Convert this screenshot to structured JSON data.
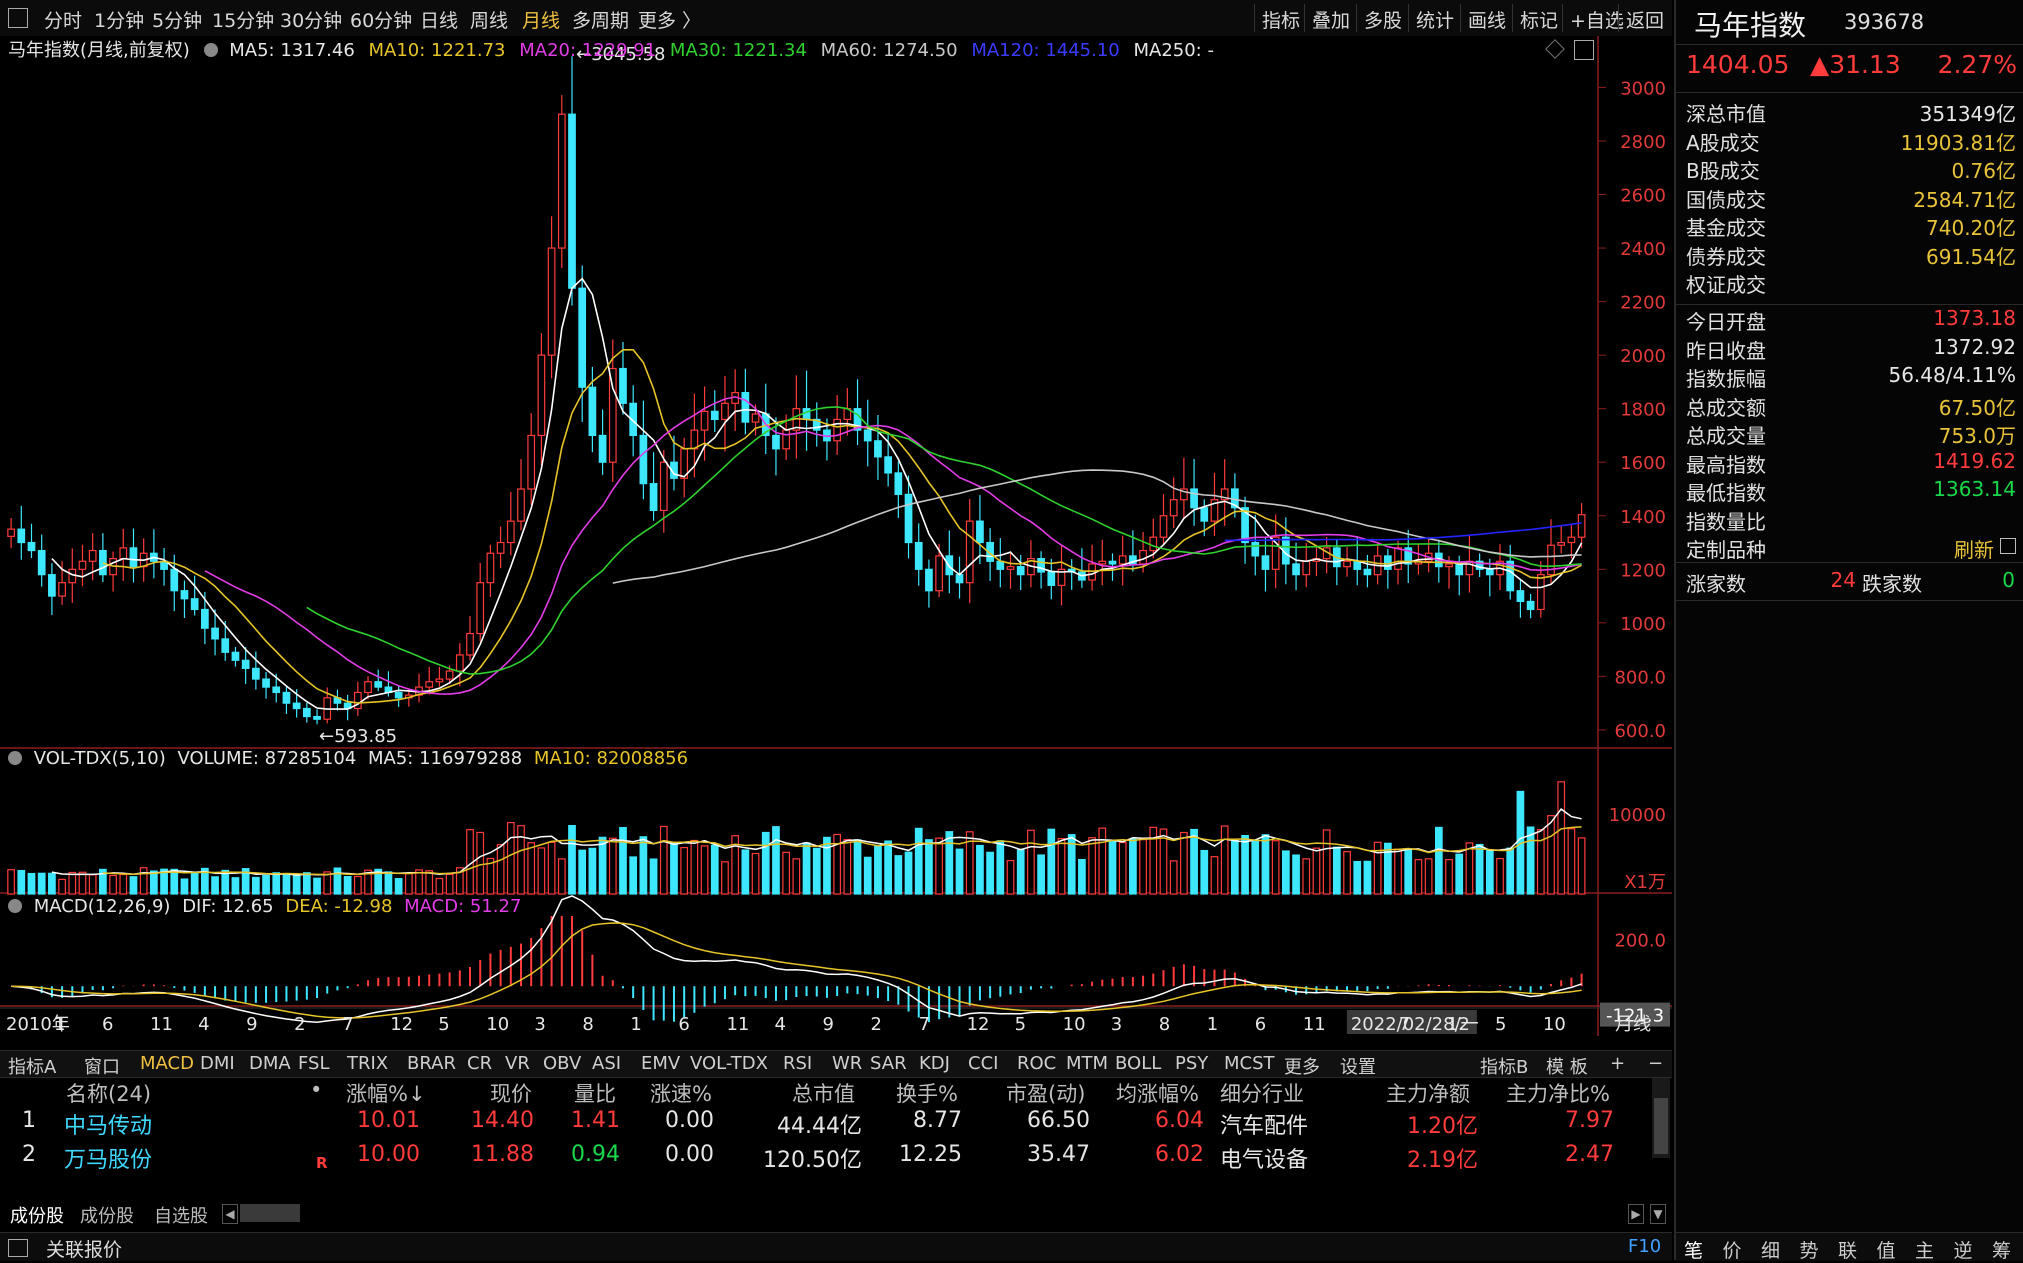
{
  "toolbar": {
    "periods": [
      "分时",
      "1分钟",
      "5分钟",
      "15分钟",
      "30分钟",
      "60分钟",
      "日线",
      "周线",
      "月线",
      "多周期",
      "更多 〉"
    ],
    "active_period": "月线",
    "right": [
      "指标",
      "叠加",
      "多股",
      "统计",
      "画线",
      "标记",
      "+自选",
      "返回"
    ]
  },
  "main_info": {
    "title": "马年指数(月线,前复权)",
    "ma5": "MA5: 1317.46",
    "ma10": "MA10: 1221.73",
    "ma20": "MA20: 1229.91",
    "ma30": "MA30: 1221.34",
    "ma60": "MA60: 1274.50",
    "ma120": "MA120: 1445.10",
    "ma250": "MA250: -"
  },
  "vol_info": {
    "title": "VOL-TDX(5,10)",
    "volume": "VOLUME: 87285104",
    "ma5": "MA5: 116979288",
    "ma10": "MA10: 82008856"
  },
  "macd_info": {
    "title": "MACD(12,26,9)",
    "dif": "DIF: 12.65",
    "dea": "DEA: -12.98",
    "macd": "MACD: 51.27"
  },
  "chart_data": {
    "type": "candlestick",
    "period": "monthly",
    "price_axis": [
      "3000",
      "2800",
      "2600",
      "2400",
      "2200",
      "2000",
      "1800",
      "1600",
      "1400",
      "1200",
      "1000",
      "800.0",
      "600.0"
    ],
    "price_ylim": [
      540,
      3080
    ],
    "high_label": "3045.58",
    "low_label": "593.85",
    "volume_axis": [
      "10000"
    ],
    "volume_unit": "X1万",
    "volume_ylim": [
      0,
      16000
    ],
    "macd_axis": [
      "200.0"
    ],
    "macd_current": "-121.3",
    "macd_ylim": [
      -170,
      300
    ],
    "x_labels": [
      "2010年",
      "1",
      "6",
      "11",
      "4",
      "9",
      "2",
      "7",
      "12",
      "5",
      "10",
      "3",
      "8",
      "1",
      "6",
      "11",
      "4",
      "9",
      "2",
      "7",
      "12",
      "5",
      "10",
      "3",
      "8",
      "1",
      "6",
      "11",
      "2022/02/28/一",
      "7",
      "12",
      "5",
      "10"
    ],
    "period_label": "月线",
    "closes": [
      1350,
      1300,
      1270,
      1180,
      1100,
      1150,
      1200,
      1230,
      1270,
      1180,
      1240,
      1280,
      1210,
      1260,
      1230,
      1200,
      1120,
      1090,
      1050,
      980,
      940,
      890,
      860,
      830,
      790,
      760,
      740,
      700,
      680,
      650,
      640,
      720,
      700,
      680,
      740,
      780,
      760,
      740,
      720,
      730,
      760,
      780,
      790,
      820,
      880,
      960,
      1150,
      1260,
      1300,
      1380,
      1500,
      1700,
      2000,
      2400,
      2900,
      2250,
      1880,
      1700,
      1600,
      1950,
      1820,
      1700,
      1520,
      1420,
      1600,
      1540,
      1650,
      1720,
      1790,
      1760,
      1820,
      1860,
      1750,
      1780,
      1700,
      1650,
      1720,
      1800,
      1760,
      1720,
      1680,
      1760,
      1800,
      1720,
      1680,
      1620,
      1560,
      1480,
      1300,
      1200,
      1120,
      1250,
      1180,
      1150,
      1380,
      1300,
      1230,
      1200,
      1210,
      1180,
      1240,
      1190,
      1140,
      1200,
      1190,
      1160,
      1220,
      1230,
      1220,
      1250,
      1220,
      1270,
      1320,
      1400,
      1460,
      1500,
      1430,
      1380,
      1460,
      1500,
      1430,
      1300,
      1250,
      1200,
      1320,
      1220,
      1180,
      1230,
      1240,
      1280,
      1210,
      1230,
      1200,
      1180,
      1250,
      1200,
      1280,
      1220,
      1230,
      1260,
      1210,
      1220,
      1180,
      1230,
      1200,
      1180,
      1230,
      1120,
      1080,
      1050,
      1180,
      1290,
      1300,
      1320,
      1404
    ],
    "ma_colors": {
      "ma5": "#ffffff",
      "ma10": "#e6c428",
      "ma20": "#e23de6",
      "ma30": "#2fd12f",
      "ma60": "#c8c8c8",
      "ma120": "#2424ff"
    }
  },
  "stock": {
    "name": "马年指数",
    "code": "393678",
    "price": "1404.05",
    "change": "▲31.13",
    "pct": "2.27%",
    "rows1": [
      {
        "k": "深总市值",
        "v": "351349亿",
        "c": "wht"
      },
      {
        "k": "A股成交",
        "v": "11903.81亿",
        "c": "yel"
      },
      {
        "k": "B股成交",
        "v": "0.76亿",
        "c": "yel"
      },
      {
        "k": "国债成交",
        "v": "2584.71亿",
        "c": "yel"
      },
      {
        "k": "基金成交",
        "v": "740.20亿",
        "c": "yel"
      },
      {
        "k": "债券成交",
        "v": "691.54亿",
        "c": "yel"
      },
      {
        "k": "权证成交",
        "v": "",
        "c": "yel"
      }
    ],
    "rows2": [
      {
        "k": "今日开盘",
        "v": "1373.18",
        "c": "red"
      },
      {
        "k": "昨日收盘",
        "v": "1372.92",
        "c": "wht"
      },
      {
        "k": "指数振幅",
        "v": "56.48/4.11%",
        "c": "wht"
      },
      {
        "k": "总成交额",
        "v": "67.50亿",
        "c": "yel"
      },
      {
        "k": "总成交量",
        "v": "753.0万",
        "c": "yel"
      },
      {
        "k": "最高指数",
        "v": "1419.62",
        "c": "red"
      },
      {
        "k": "最低指数",
        "v": "1363.14",
        "c": "grn"
      },
      {
        "k": "指数量比",
        "v": "",
        "c": "wht"
      },
      {
        "k": "定制品种",
        "v": "刷新",
        "c": "yel"
      }
    ],
    "up_label": "涨家数",
    "up": "24",
    "down_label": "跌家数",
    "down": "0"
  },
  "indicators": [
    "指标A",
    "窗口",
    "MACD",
    "DMI",
    "DMA",
    "FSL",
    "TRIX",
    "BRAR",
    "CR",
    "VR",
    "OBV",
    "ASI",
    "EMV",
    "VOL-TDX",
    "RSI",
    "WR",
    "SAR",
    "KDJ",
    "CCI",
    "ROC",
    "MTM",
    "BOLL",
    "PSY",
    "MCST",
    "更多",
    "设置"
  ],
  "indicators_right": [
    "指标B",
    "模 板",
    "+",
    "−"
  ],
  "table": {
    "headers": [
      "名称(24)",
      "•",
      "涨幅%↓",
      "现价",
      "量比",
      "涨速%",
      "总市值",
      "换手%",
      "市盈(动)",
      "均涨幅%",
      "细分行业",
      "主力净额",
      "主力净比%"
    ],
    "rows": [
      {
        "no": "1",
        "name": "中马传动",
        "flag": "",
        "pct": "10.01",
        "price": "14.40",
        "lb": "1.41",
        "speed": "0.00",
        "cap": "44.44亿",
        "turn": "8.77",
        "pe": "66.50",
        "avg": "6.04",
        "ind": "汽车配件",
        "net": "1.20亿",
        "netp": "7.97",
        "lbc": "red"
      },
      {
        "no": "2",
        "name": "万马股份",
        "flag": "R",
        "pct": "10.00",
        "price": "11.88",
        "lb": "0.94",
        "speed": "0.00",
        "cap": "120.50亿",
        "turn": "12.25",
        "pe": "35.47",
        "avg": "6.02",
        "ind": "电气设备",
        "net": "2.19亿",
        "netp": "2.47",
        "lbc": "grn"
      }
    ]
  },
  "bottom_tabs": [
    "成份股",
    "成份股",
    "自选股"
  ],
  "status": {
    "label": "关联报价",
    "f10": "F10"
  },
  "right_tabs": [
    "笔",
    "价",
    "细",
    "势",
    "联",
    "值",
    "主",
    "逆",
    "筹"
  ]
}
